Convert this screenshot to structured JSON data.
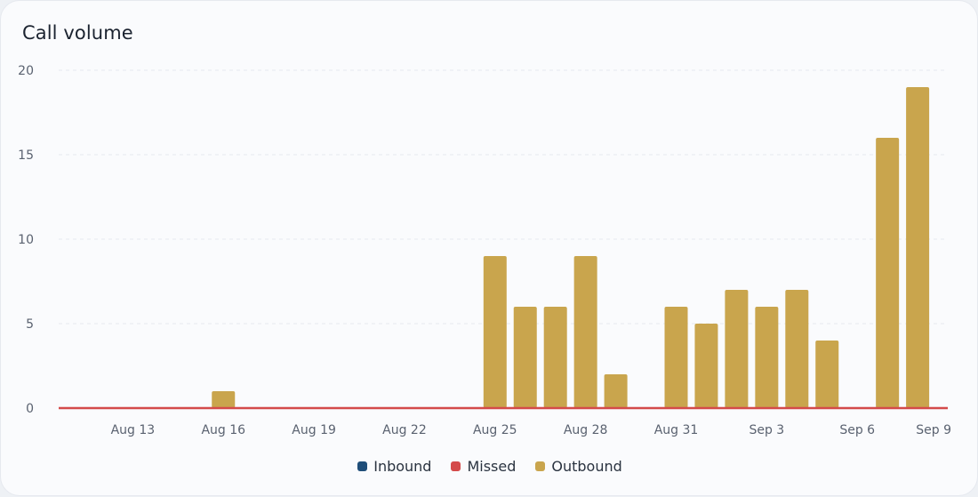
{
  "title": "Call volume",
  "colors": {
    "inbound": "#1f4e79",
    "missed": "#d44a4a",
    "outbound": "#c9a54d",
    "grid": "#e6e9ee",
    "tick": "#5a6270"
  },
  "legend": [
    {
      "label": "Inbound",
      "color": "#1f4e79"
    },
    {
      "label": "Missed",
      "color": "#d44a4a"
    },
    {
      "label": "Outbound",
      "color": "#c9a54d"
    }
  ],
  "chart_data": {
    "type": "bar",
    "title": "Call volume",
    "xlabel": "",
    "ylabel": "",
    "ylim": [
      0,
      20
    ],
    "yticks": [
      0,
      5,
      10,
      15,
      20
    ],
    "grid": true,
    "legend_position": "bottom",
    "categories": [
      "Aug 11",
      "Aug 12",
      "Aug 13",
      "Aug 14",
      "Aug 15",
      "Aug 16",
      "Aug 17",
      "Aug 18",
      "Aug 19",
      "Aug 20",
      "Aug 21",
      "Aug 22",
      "Aug 23",
      "Aug 24",
      "Aug 25",
      "Aug 26",
      "Aug 27",
      "Aug 28",
      "Aug 29",
      "Aug 30",
      "Aug 31",
      "Sep 1",
      "Sep 2",
      "Sep 3",
      "Sep 4",
      "Sep 5",
      "Sep 6",
      "Sep 7",
      "Sep 8",
      "Sep 9"
    ],
    "xtick_labels": [
      "Aug 13",
      "Aug 16",
      "Aug 19",
      "Aug 22",
      "Aug 25",
      "Aug 28",
      "Aug 31",
      "Sep 3",
      "Sep 6",
      "Sep 9"
    ],
    "series": [
      {
        "name": "Inbound",
        "values": [
          0,
          0,
          0,
          0,
          0,
          0,
          0,
          0,
          0,
          0,
          0,
          0,
          0,
          0,
          0,
          0,
          0,
          0,
          0,
          0,
          0,
          0,
          0,
          0,
          0,
          0,
          0,
          0,
          0,
          0
        ]
      },
      {
        "name": "Missed",
        "values": [
          0,
          0,
          0,
          0,
          0,
          0,
          0,
          0,
          0,
          0,
          0,
          0,
          0,
          0,
          0,
          0,
          0,
          0,
          0,
          0,
          0,
          0,
          0,
          0,
          0,
          0,
          0,
          0,
          0,
          0
        ]
      },
      {
        "name": "Outbound",
        "values": [
          0,
          0,
          0,
          0,
          0,
          1,
          0,
          0,
          0,
          0,
          0,
          0,
          0,
          0,
          9,
          6,
          6,
          9,
          2,
          0,
          6,
          5,
          7,
          6,
          7,
          4,
          0,
          16,
          19,
          0
        ]
      }
    ]
  }
}
